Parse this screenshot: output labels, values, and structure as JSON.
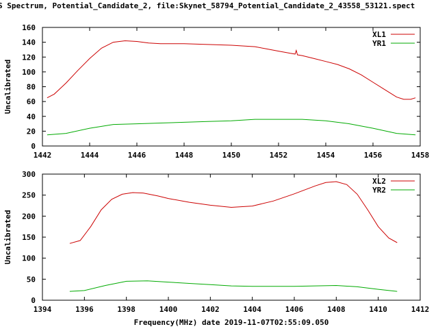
{
  "title": "S Spectrum, Potential_Candidate_2, file:Skynet_58794_Potential_Candidate_2_43558_53121.spect",
  "footer": "Frequency(MHz) date 2019-11-07T02:55:09.050",
  "chart_data": [
    {
      "type": "line",
      "ylabel": "Uncalibrated",
      "xlim": [
        1442,
        1458
      ],
      "ylim": [
        0,
        160
      ],
      "xticks": [
        1442,
        1444,
        1446,
        1448,
        1450,
        1452,
        1454,
        1456,
        1458
      ],
      "yticks": [
        0,
        20,
        40,
        60,
        80,
        100,
        120,
        140,
        160
      ],
      "legend": "top-right",
      "series": [
        {
          "name": "XL1",
          "color": "#cc0000",
          "x": [
            1442.2,
            1442.5,
            1443.0,
            1443.5,
            1444.0,
            1444.5,
            1445.0,
            1445.5,
            1446.0,
            1446.5,
            1447.0,
            1448.0,
            1449.0,
            1450.0,
            1451.0,
            1451.5,
            1452.0,
            1452.5,
            1452.7,
            1452.75,
            1452.8,
            1453.0,
            1453.5,
            1454.0,
            1454.5,
            1455.0,
            1455.5,
            1456.0,
            1456.5,
            1457.0,
            1457.3,
            1457.6,
            1457.8
          ],
          "y": [
            65,
            70,
            85,
            102,
            118,
            132,
            140,
            142,
            141,
            139,
            138,
            138,
            137,
            136,
            134,
            131,
            128,
            125,
            124,
            129,
            123,
            122,
            118,
            114,
            110,
            104,
            96,
            86,
            76,
            66,
            63,
            63,
            65
          ]
        },
        {
          "name": "YR1",
          "color": "#00aa00",
          "x": [
            1442.2,
            1443.0,
            1444.0,
            1445.0,
            1446.0,
            1447.0,
            1448.0,
            1449.0,
            1450.0,
            1451.0,
            1452.0,
            1453.0,
            1454.0,
            1455.0,
            1456.0,
            1457.0,
            1457.8
          ],
          "y": [
            15,
            17,
            24,
            29,
            30,
            31,
            32,
            33,
            34,
            36,
            36,
            36,
            34,
            30,
            24,
            17,
            15
          ]
        }
      ]
    },
    {
      "type": "line",
      "ylabel": "Uncalibrated",
      "xlim": [
        1394,
        1412
      ],
      "ylim": [
        0,
        300
      ],
      "xticks": [
        1394,
        1396,
        1398,
        1400,
        1402,
        1404,
        1406,
        1408,
        1410,
        1412
      ],
      "yticks": [
        0,
        50,
        100,
        150,
        200,
        250,
        300
      ],
      "legend": "top-right",
      "series": [
        {
          "name": "XL2",
          "color": "#cc0000",
          "x": [
            1395.3,
            1395.8,
            1396.3,
            1396.8,
            1397.3,
            1397.8,
            1398.3,
            1398.8,
            1399.5,
            1400.0,
            1401.0,
            1402.0,
            1403.0,
            1404.0,
            1405.0,
            1406.0,
            1407.0,
            1407.5,
            1408.0,
            1408.5,
            1409.0,
            1409.5,
            1410.0,
            1410.5,
            1410.9
          ],
          "y": [
            135,
            142,
            175,
            215,
            240,
            252,
            256,
            255,
            248,
            242,
            233,
            226,
            221,
            224,
            236,
            253,
            272,
            280,
            282,
            275,
            252,
            215,
            175,
            148,
            137
          ]
        },
        {
          "name": "YR2",
          "color": "#00aa00",
          "x": [
            1395.3,
            1396.0,
            1397.0,
            1398.0,
            1399.0,
            1400.0,
            1401.0,
            1402.0,
            1403.0,
            1404.0,
            1405.0,
            1406.0,
            1407.0,
            1408.0,
            1409.0,
            1410.0,
            1410.9
          ],
          "y": [
            21,
            23,
            35,
            45,
            46,
            43,
            40,
            37,
            34,
            33,
            33,
            33,
            34,
            35,
            32,
            26,
            21
          ]
        }
      ]
    }
  ]
}
